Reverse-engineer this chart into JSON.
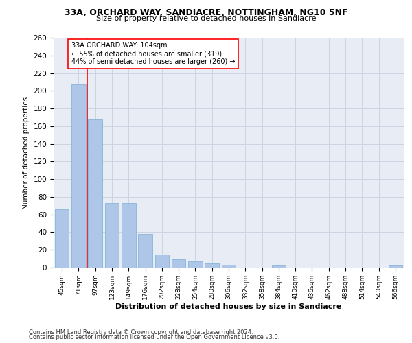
{
  "title1": "33A, ORCHARD WAY, SANDIACRE, NOTTINGHAM, NG10 5NF",
  "title2": "Size of property relative to detached houses in Sandiacre",
  "xlabel": "Distribution of detached houses by size in Sandiacre",
  "ylabel": "Number of detached properties",
  "bar_color": "#aec6e8",
  "bar_edge_color": "#7aadd4",
  "categories": [
    "45sqm",
    "71sqm",
    "97sqm",
    "123sqm",
    "149sqm",
    "176sqm",
    "202sqm",
    "228sqm",
    "254sqm",
    "280sqm",
    "306sqm",
    "332sqm",
    "358sqm",
    "384sqm",
    "410sqm",
    "436sqm",
    "462sqm",
    "488sqm",
    "514sqm",
    "540sqm",
    "566sqm"
  ],
  "values": [
    66,
    207,
    168,
    73,
    73,
    38,
    15,
    9,
    7,
    5,
    3,
    0,
    0,
    2,
    0,
    0,
    0,
    0,
    0,
    0,
    2
  ],
  "annotation_text": "33A ORCHARD WAY: 104sqm\n← 55% of detached houses are smaller (319)\n44% of semi-detached houses are larger (260) →",
  "vline_x": 1.5,
  "ylim": [
    0,
    260
  ],
  "yticks": [
    0,
    20,
    40,
    60,
    80,
    100,
    120,
    140,
    160,
    180,
    200,
    220,
    240,
    260
  ],
  "grid_color": "#ccd4e4",
  "background_color": "#e8edf5",
  "footer1": "Contains HM Land Registry data © Crown copyright and database right 2024.",
  "footer2": "Contains public sector information licensed under the Open Government Licence v3.0."
}
